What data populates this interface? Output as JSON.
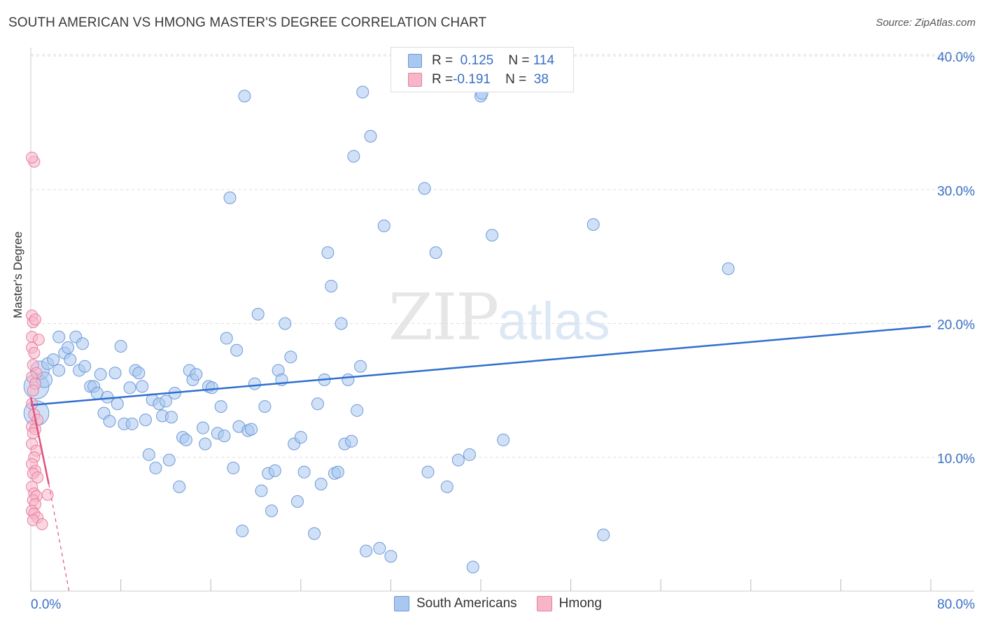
{
  "title": "SOUTH AMERICAN VS HMONG MASTER'S DEGREE CORRELATION CHART",
  "source": "Source: ZipAtlas.com",
  "watermark": {
    "zip": "ZIP",
    "atlas": "atlas"
  },
  "legend": {
    "row1": {
      "r_label": "R = ",
      "r_value": "0.125",
      "n_label": "N = ",
      "n_value": "114"
    },
    "row2": {
      "r_label": "R = ",
      "r_value": "-0.191",
      "n_label": "N = ",
      "n_value": "38"
    }
  },
  "bottom_legend": {
    "series1": "South Americans",
    "series2": "Hmong"
  },
  "colors": {
    "blue_fill": "#a9c8f0",
    "blue_stroke": "#6d9ad8",
    "blue_line": "#2f6fcf",
    "pink_fill": "#f7b6c8",
    "pink_stroke": "#e87ea0",
    "pink_line": "#e0527f",
    "grid": "#dddddd",
    "axis_text": "#3a6fc4"
  },
  "chart_data": {
    "type": "scatter",
    "title": "SOUTH AMERICAN VS HMONG MASTER'S DEGREE CORRELATION CHART",
    "xlabel": "",
    "ylabel": "Master's Degree",
    "xlim": [
      0,
      80
    ],
    "ylim": [
      0,
      40
    ],
    "x_tick_labels": [
      "0.0%",
      "80.0%"
    ],
    "y_ticks": [
      10,
      20,
      30,
      40
    ],
    "y_tick_labels": [
      "10.0%",
      "20.0%",
      "30.0%",
      "40.0%"
    ],
    "series": [
      {
        "name": "South Americans",
        "R": 0.125,
        "N": 114,
        "trend": {
          "x": [
            0,
            80
          ],
          "y": [
            13.9,
            19.8
          ]
        },
        "points": [
          [
            0.5,
            15.3,
            4
          ],
          [
            0.5,
            13.3,
            4
          ],
          [
            0.8,
            16.5,
            3
          ],
          [
            1.2,
            15.8,
            2.5
          ],
          [
            1.5,
            17.0,
            2
          ],
          [
            2.0,
            17.3,
            2
          ],
          [
            2.5,
            16.5,
            2
          ],
          [
            2.5,
            19.0,
            2
          ],
          [
            3.0,
            17.8,
            2
          ],
          [
            3.3,
            18.2,
            2
          ],
          [
            3.5,
            17.3,
            2
          ],
          [
            4.0,
            19.0,
            2
          ],
          [
            4.3,
            16.5,
            2
          ],
          [
            4.6,
            18.5,
            2
          ],
          [
            4.8,
            16.8,
            2
          ],
          [
            5.3,
            15.3,
            2
          ],
          [
            5.6,
            15.3,
            2
          ],
          [
            5.9,
            14.8,
            2
          ],
          [
            6.2,
            16.2,
            2
          ],
          [
            6.5,
            13.3,
            2
          ],
          [
            6.8,
            14.5,
            2
          ],
          [
            7.0,
            12.7,
            2
          ],
          [
            7.5,
            16.3,
            2
          ],
          [
            7.7,
            14.0,
            2
          ],
          [
            8.0,
            18.3,
            2
          ],
          [
            8.3,
            12.5,
            2
          ],
          [
            8.8,
            15.2,
            2
          ],
          [
            9.0,
            12.5,
            2
          ],
          [
            9.3,
            16.5,
            2
          ],
          [
            9.6,
            16.3,
            2
          ],
          [
            9.9,
            15.3,
            2
          ],
          [
            10.2,
            12.8,
            2
          ],
          [
            10.5,
            10.2,
            2
          ],
          [
            10.8,
            14.3,
            2
          ],
          [
            11.1,
            9.2,
            2
          ],
          [
            11.4,
            14.0,
            2
          ],
          [
            11.7,
            13.1,
            2
          ],
          [
            12.0,
            14.2,
            2
          ],
          [
            12.3,
            9.8,
            2
          ],
          [
            12.5,
            13.0,
            2
          ],
          [
            12.8,
            14.8,
            2
          ],
          [
            13.2,
            7.8,
            2
          ],
          [
            13.5,
            11.5,
            2
          ],
          [
            13.8,
            11.3,
            2
          ],
          [
            14.1,
            16.5,
            2
          ],
          [
            14.4,
            15.8,
            2
          ],
          [
            14.7,
            16.2,
            2
          ],
          [
            15.3,
            12.2,
            2
          ],
          [
            15.5,
            11.0,
            2
          ],
          [
            15.8,
            15.3,
            2
          ],
          [
            16.1,
            15.2,
            2
          ],
          [
            16.6,
            11.8,
            2
          ],
          [
            16.9,
            13.8,
            2
          ],
          [
            17.2,
            11.6,
            2
          ],
          [
            17.4,
            18.9,
            2
          ],
          [
            17.7,
            29.4,
            2
          ],
          [
            18.0,
            9.2,
            2
          ],
          [
            18.3,
            18.0,
            2
          ],
          [
            18.5,
            12.3,
            2
          ],
          [
            18.8,
            4.5,
            2
          ],
          [
            19.0,
            37.0,
            2
          ],
          [
            19.3,
            12.0,
            2
          ],
          [
            19.6,
            12.1,
            2
          ],
          [
            19.9,
            15.5,
            2
          ],
          [
            20.2,
            20.7,
            2
          ],
          [
            20.5,
            7.5,
            2
          ],
          [
            20.8,
            13.8,
            2
          ],
          [
            21.1,
            8.8,
            2
          ],
          [
            21.4,
            6.0,
            2
          ],
          [
            21.7,
            9.0,
            2
          ],
          [
            22.0,
            16.5,
            2
          ],
          [
            22.3,
            15.8,
            2
          ],
          [
            22.6,
            20.0,
            2
          ],
          [
            23.1,
            17.5,
            2
          ],
          [
            23.4,
            11.0,
            2
          ],
          [
            23.7,
            6.7,
            2
          ],
          [
            24.0,
            11.5,
            2
          ],
          [
            24.3,
            8.9,
            2
          ],
          [
            25.2,
            4.3,
            2
          ],
          [
            25.5,
            14.0,
            2
          ],
          [
            25.8,
            8.0,
            2
          ],
          [
            26.1,
            15.8,
            2
          ],
          [
            26.4,
            25.3,
            2
          ],
          [
            26.7,
            22.8,
            2
          ],
          [
            27.0,
            8.8,
            2
          ],
          [
            27.3,
            8.9,
            2
          ],
          [
            27.6,
            20.0,
            2
          ],
          [
            27.9,
            11.0,
            2
          ],
          [
            28.2,
            15.8,
            2
          ],
          [
            28.5,
            11.2,
            2
          ],
          [
            28.7,
            32.5,
            2
          ],
          [
            29.0,
            13.5,
            2
          ],
          [
            29.3,
            16.8,
            2
          ],
          [
            29.5,
            37.3,
            2
          ],
          [
            29.8,
            3.0,
            2
          ],
          [
            30.2,
            34.0,
            2
          ],
          [
            31.0,
            3.2,
            2
          ],
          [
            31.4,
            27.3,
            2
          ],
          [
            32.0,
            2.6,
            2
          ],
          [
            35.0,
            30.1,
            2
          ],
          [
            35.3,
            8.9,
            2
          ],
          [
            36.0,
            25.3,
            2
          ],
          [
            37.0,
            7.8,
            2
          ],
          [
            38.0,
            9.8,
            2
          ],
          [
            39.0,
            10.2,
            2
          ],
          [
            39.3,
            1.8,
            2
          ],
          [
            40.0,
            37.0,
            2
          ],
          [
            40.1,
            37.2,
            2
          ],
          [
            41.0,
            26.6,
            2
          ],
          [
            42.0,
            11.3,
            2
          ],
          [
            50.0,
            27.4,
            2
          ],
          [
            50.9,
            4.2,
            2
          ],
          [
            62.0,
            24.1,
            2
          ]
        ]
      },
      {
        "name": "Hmong",
        "R": -0.191,
        "N": 38,
        "trend": {
          "x": [
            0,
            1.6
          ],
          "y": [
            14.5,
            8.0
          ],
          "dashed_to": [
            3.4,
            0
          ]
        },
        "points": [
          [
            0.1,
            20.6
          ],
          [
            0.2,
            20.1
          ],
          [
            0.1,
            19.0
          ],
          [
            0.4,
            20.3
          ],
          [
            0.7,
            18.8
          ],
          [
            0.1,
            18.2
          ],
          [
            0.3,
            17.8
          ],
          [
            0.2,
            16.9
          ],
          [
            0.5,
            16.3
          ],
          [
            0.1,
            16.0
          ],
          [
            0.4,
            15.5
          ],
          [
            0.2,
            15.0
          ],
          [
            0.1,
            14.0
          ],
          [
            0.3,
            13.2
          ],
          [
            0.6,
            12.8
          ],
          [
            0.1,
            12.3
          ],
          [
            0.4,
            12.1
          ],
          [
            0.2,
            11.8
          ],
          [
            0.1,
            11.0
          ],
          [
            0.5,
            10.5
          ],
          [
            0.3,
            10.0
          ],
          [
            0.1,
            9.5
          ],
          [
            0.4,
            9.0
          ],
          [
            0.2,
            8.8
          ],
          [
            0.6,
            8.5
          ],
          [
            0.1,
            7.8
          ],
          [
            0.3,
            7.3
          ],
          [
            0.5,
            7.1
          ],
          [
            1.5,
            7.2
          ],
          [
            0.2,
            6.8
          ],
          [
            0.4,
            6.5
          ],
          [
            0.1,
            6.0
          ],
          [
            0.3,
            5.8
          ],
          [
            0.6,
            5.5
          ],
          [
            0.2,
            5.3
          ],
          [
            1.0,
            5.0
          ],
          [
            0.3,
            32.1
          ],
          [
            0.1,
            32.4
          ]
        ]
      }
    ]
  }
}
